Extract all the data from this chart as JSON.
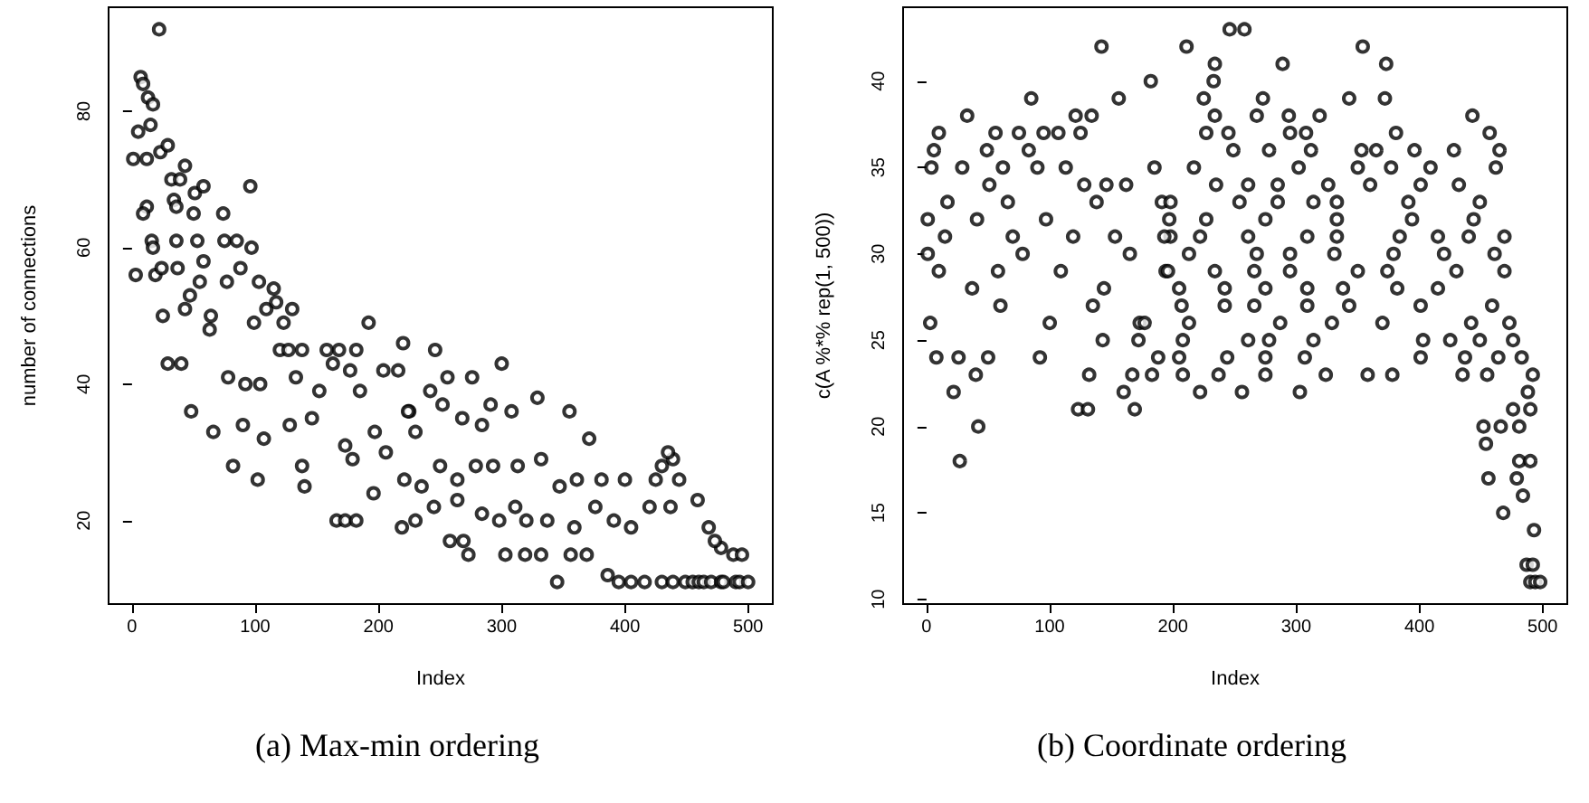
{
  "chart_data": [
    {
      "type": "scatter",
      "title": "(a) Max-min ordering",
      "xlabel": "Index",
      "ylabel": "number of connections",
      "marker": "circle",
      "xlim": [
        -19,
        520
      ],
      "ylim": [
        7.76,
        95.24
      ],
      "xticks": [
        0,
        100,
        200,
        300,
        400,
        500
      ],
      "yticks": [
        20,
        40,
        60,
        80
      ],
      "series": [
        {
          "color": "#000000",
          "x": [
            1,
            5,
            7,
            9,
            13,
            17,
            22,
            15,
            3,
            12,
            23,
            29,
            12,
            9,
            16,
            17,
            19,
            24,
            25,
            29,
            40,
            32,
            43,
            39,
            34,
            36,
            36,
            37,
            43,
            48,
            47,
            50,
            51,
            58,
            53,
            55,
            58,
            64,
            66,
            63,
            74,
            75,
            77,
            78,
            82,
            85,
            88,
            90,
            92,
            96,
            97,
            99,
            102,
            103,
            104,
            107,
            109,
            115,
            117,
            120,
            123,
            127,
            130,
            138,
            128,
            133,
            138,
            140,
            146,
            152,
            158,
            163,
            166,
            173,
            182,
            168,
            173,
            177,
            179,
            182,
            185,
            192,
            196,
            197,
            204,
            206,
            216,
            219,
            220,
            225,
            246,
            256,
            276,
            300,
            329,
            355,
            291,
            308,
            371,
            224,
            230,
            242,
            252,
            268,
            284,
            221,
            235,
            250,
            264,
            279,
            293,
            313,
            332,
            347,
            361,
            381,
            400,
            425,
            444,
            258,
            269,
            273,
            303,
            319,
            332,
            345,
            356,
            369,
            386,
            395,
            405,
            416,
            430,
            439,
            449,
            455,
            460,
            464,
            470,
            478,
            480,
            490,
            493,
            500,
            439,
            430,
            459,
            468,
            478,
            488,
            495,
            473,
            437,
            420,
            405,
            391,
            376,
            359,
            337,
            320,
            311,
            298,
            284,
            264,
            245,
            230,
            435
          ],
          "values": [
            73,
            77,
            85,
            84,
            82,
            81,
            92,
            78,
            56,
            73,
            74,
            75,
            66,
            65,
            61,
            60,
            56,
            57,
            50,
            43,
            43,
            70,
            72,
            70,
            67,
            66,
            61,
            57,
            51,
            36,
            53,
            65,
            68,
            69,
            61,
            55,
            58,
            50,
            33,
            48,
            65,
            61,
            55,
            41,
            28,
            61,
            57,
            34,
            40,
            69,
            60,
            49,
            26,
            55,
            40,
            32,
            51,
            54,
            52,
            45,
            49,
            45,
            51,
            45,
            34,
            41,
            28,
            25,
            35,
            39,
            45,
            43,
            20,
            20,
            20,
            45,
            31,
            42,
            29,
            45,
            39,
            49,
            24,
            33,
            42,
            30,
            42,
            19,
            46,
            36,
            45,
            41,
            41,
            43,
            38,
            36,
            37,
            36,
            32,
            36,
            33,
            39,
            37,
            35,
            34,
            26,
            25,
            28,
            26,
            28,
            28,
            28,
            29,
            25,
            26,
            26,
            26,
            26,
            26,
            17,
            17,
            15,
            15,
            15,
            15,
            11,
            15,
            15,
            12,
            11,
            11,
            11,
            11,
            11,
            11,
            11,
            11,
            11,
            11,
            11,
            11,
            11,
            11,
            11,
            29,
            28,
            23,
            19,
            16,
            15,
            15,
            17,
            22,
            22,
            19,
            20,
            22,
            19,
            20,
            20,
            22,
            20,
            21,
            23,
            22,
            20,
            30
          ]
        }
      ]
    },
    {
      "type": "scatter",
      "title": "(b) Coordinate ordering",
      "xlabel": "Index",
      "ylabel": "c(A %*% rep(1, 500))",
      "marker": "circle",
      "xlim": [
        -19,
        520
      ],
      "ylim": [
        9.72,
        44.28
      ],
      "xticks": [
        0,
        100,
        200,
        300,
        400,
        500
      ],
      "yticks": [
        10,
        15,
        20,
        25,
        30,
        35,
        40
      ],
      "series": [
        {
          "color": "#000000",
          "x": [
            1,
            4,
            6,
            10,
            3,
            8,
            15,
            1,
            10,
            17,
            22,
            26,
            27,
            33,
            29,
            40,
            42,
            37,
            41,
            49,
            50,
            51,
            56,
            58,
            60,
            62,
            66,
            70,
            75,
            78,
            83,
            85,
            90,
            92,
            95,
            97,
            100,
            107,
            109,
            113,
            119,
            121,
            123,
            125,
            128,
            131,
            132,
            134,
            135,
            138,
            142,
            143,
            144,
            146,
            153,
            156,
            160,
            162,
            165,
            167,
            169,
            172,
            173,
            177,
            182,
            183,
            185,
            188,
            191,
            194,
            198,
            246,
            258,
            211,
            354,
            234,
            289,
            373,
            233,
            225,
            273,
            343,
            372,
            234,
            268,
            294,
            319,
            443,
            227,
            245,
            295,
            308,
            381,
            457,
            249,
            278,
            312,
            353,
            365,
            396,
            428,
            465,
            217,
            302,
            350,
            377,
            409,
            462,
            235,
            261,
            285,
            326,
            360,
            401,
            432,
            198,
            254,
            285,
            314,
            333,
            391,
            449,
            197,
            227,
            275,
            333,
            394,
            444,
            193,
            222,
            261,
            309,
            333,
            384,
            415,
            440,
            469,
            213,
            268,
            295,
            331,
            379,
            420,
            461,
            196,
            234,
            266,
            295,
            350,
            374,
            430,
            469,
            205,
            242,
            275,
            309,
            338,
            382,
            415,
            207,
            242,
            266,
            309,
            343,
            401,
            459,
            213,
            287,
            329,
            370,
            442,
            473,
            208,
            261,
            278,
            314,
            403,
            425,
            449,
            476,
            205,
            244,
            275,
            307,
            401,
            437,
            464,
            483,
            208,
            237,
            275,
            324,
            358,
            378,
            435,
            455,
            492,
            222,
            256,
            303,
            488,
            476,
            490,
            452,
            466,
            481,
            454,
            481,
            490,
            456,
            479,
            484,
            468,
            493,
            487,
            492,
            490,
            494,
            498
          ],
          "values": [
            30,
            35,
            36,
            37,
            26,
            24,
            31,
            32,
            29,
            33,
            22,
            24,
            18,
            38,
            35,
            23,
            20,
            28,
            32,
            36,
            24,
            34,
            37,
            29,
            27,
            35,
            33,
            31,
            37,
            30,
            36,
            39,
            35,
            24,
            37,
            32,
            26,
            37,
            29,
            35,
            31,
            38,
            21,
            37,
            34,
            21,
            23,
            38,
            27,
            33,
            42,
            25,
            28,
            34,
            31,
            39,
            22,
            34,
            30,
            23,
            21,
            25,
            26,
            26,
            40,
            23,
            35,
            24,
            33,
            29,
            31,
            43,
            43,
            42,
            42,
            41,
            41,
            41,
            40,
            39,
            39,
            39,
            39,
            38,
            38,
            38,
            38,
            38,
            37,
            37,
            37,
            37,
            37,
            37,
            36,
            36,
            36,
            36,
            36,
            36,
            36,
            36,
            35,
            35,
            35,
            35,
            35,
            35,
            34,
            34,
            34,
            34,
            34,
            34,
            34,
            33,
            33,
            33,
            33,
            33,
            33,
            33,
            32,
            32,
            32,
            32,
            32,
            32,
            31,
            31,
            31,
            31,
            31,
            31,
            31,
            31,
            31,
            30,
            30,
            30,
            30,
            30,
            30,
            30,
            29,
            29,
            29,
            29,
            29,
            29,
            29,
            29,
            28,
            28,
            28,
            28,
            28,
            28,
            28,
            27,
            27,
            27,
            27,
            27,
            27,
            27,
            26,
            26,
            26,
            26,
            26,
            26,
            25,
            25,
            25,
            25,
            25,
            25,
            25,
            25,
            24,
            24,
            24,
            24,
            24,
            24,
            24,
            24,
            23,
            23,
            23,
            23,
            23,
            23,
            23,
            23,
            23,
            22,
            22,
            22,
            22,
            21,
            21,
            20,
            20,
            20,
            19,
            18,
            18,
            17,
            17,
            16,
            15,
            14,
            12,
            12,
            11,
            11,
            11
          ]
        }
      ]
    }
  ]
}
